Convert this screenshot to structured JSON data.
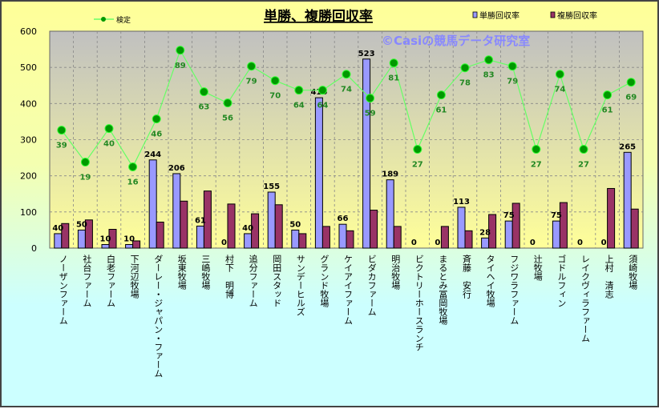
{
  "chart_data": {
    "type": "bar+line",
    "title": "単勝、複勝回収率",
    "watermark": "©Casiの競馬データ研究室",
    "ylim": [
      0,
      600
    ],
    "yticks": [
      0,
      100,
      200,
      300,
      400,
      500,
      600
    ],
    "grid": true,
    "legend_placement": "top",
    "categories": [
      "ノーザンファーム",
      "社台ファーム",
      "白老ファーム",
      "下河辺牧場",
      "ダーレー・ジャパン・ファーム",
      "坂東牧場",
      "三嶋牧場",
      "村下　明博",
      "追分ファーム",
      "岡田スタッド",
      "サンデーヒルズ",
      "グランド牧場",
      "ケイアイファーム",
      "ビダカファーム",
      "明治牧場",
      "ビクトリーホースランチ",
      "まるとみ冨岡牧場",
      "斉藤　安行",
      "タイヘイ牧場",
      "フジワラファーム",
      "辻牧場",
      "ゴドルフィン",
      "レイクヴィラファーム",
      "上村　清志",
      "須崎牧場"
    ],
    "series": [
      {
        "name": "単勝回収率",
        "type": "bar",
        "color": "#9999ff",
        "values": [
          40,
          50,
          10,
          10,
          244,
          206,
          61,
          0,
          40,
          155,
          50,
          416,
          66,
          523,
          189,
          0,
          0,
          113,
          28,
          75,
          0,
          75,
          0,
          0,
          265
        ]
      },
      {
        "name": "複勝回収率",
        "type": "bar",
        "color": "#993366",
        "values": [
          68,
          78,
          52,
          20,
          72,
          130,
          158,
          122,
          95,
          120,
          40,
          60,
          48,
          105,
          60,
          0,
          60,
          48,
          93,
          124,
          0,
          126,
          0,
          165,
          108
        ]
      },
      {
        "name": "検定",
        "type": "line",
        "color": "#66ff66",
        "marker_color": "#009900",
        "values": [
          39,
          19,
          40,
          16,
          46,
          89,
          63,
          56,
          79,
          70,
          64,
          64,
          74,
          59,
          81,
          27,
          61,
          78,
          83,
          79,
          27,
          74,
          27,
          61,
          69
        ]
      }
    ]
  }
}
